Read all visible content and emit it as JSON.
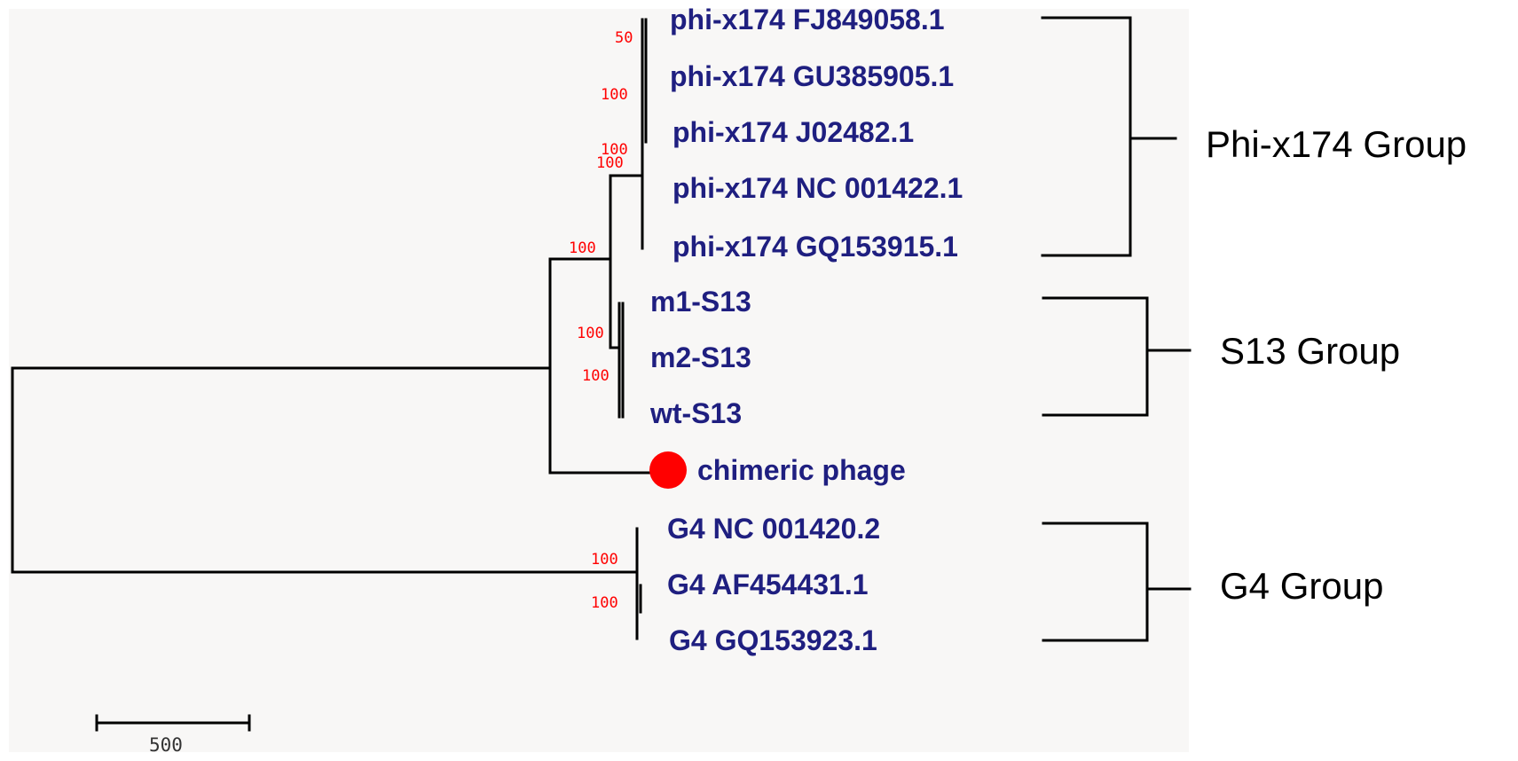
{
  "colors": {
    "taxon_text": "#1f1f80",
    "bootstrap_text": "#ff0000",
    "branch": "#000000",
    "marker": "#ff0000",
    "panel_background": "#f8f7f6"
  },
  "taxa": [
    {
      "id": "t1",
      "label": "phi-x174 FJ849058.1"
    },
    {
      "id": "t2",
      "label": "phi-x174 GU385905.1"
    },
    {
      "id": "t3",
      "label": "phi-x174 J02482.1"
    },
    {
      "id": "t4",
      "label": "phi-x174 NC 001422.1"
    },
    {
      "id": "t5",
      "label": "phi-x174 GQ153915.1"
    },
    {
      "id": "t6",
      "label": "m1-S13"
    },
    {
      "id": "t7",
      "label": "m2-S13"
    },
    {
      "id": "t8",
      "label": "wt-S13"
    },
    {
      "id": "t9",
      "label": "chimeric phage",
      "marker": "red-dot"
    },
    {
      "id": "t10",
      "label": "G4 NC 001420.2"
    },
    {
      "id": "t11",
      "label": "G4 AF454431.1"
    },
    {
      "id": "t12",
      "label": "G4 GQ153923.1"
    }
  ],
  "bootstrap_values": [
    "50",
    "100",
    "100",
    "100",
    "100",
    "100",
    "100",
    "100",
    "100"
  ],
  "groups": [
    {
      "label": "Phi-x174 Group",
      "members": [
        "t1",
        "t2",
        "t3",
        "t4",
        "t5"
      ]
    },
    {
      "label": "S13 Group",
      "members": [
        "t6",
        "t7",
        "t8"
      ]
    },
    {
      "label": "G4 Group",
      "members": [
        "t10",
        "t11",
        "t12"
      ]
    }
  ],
  "scale_bar": {
    "label": "500",
    "value": 500
  }
}
